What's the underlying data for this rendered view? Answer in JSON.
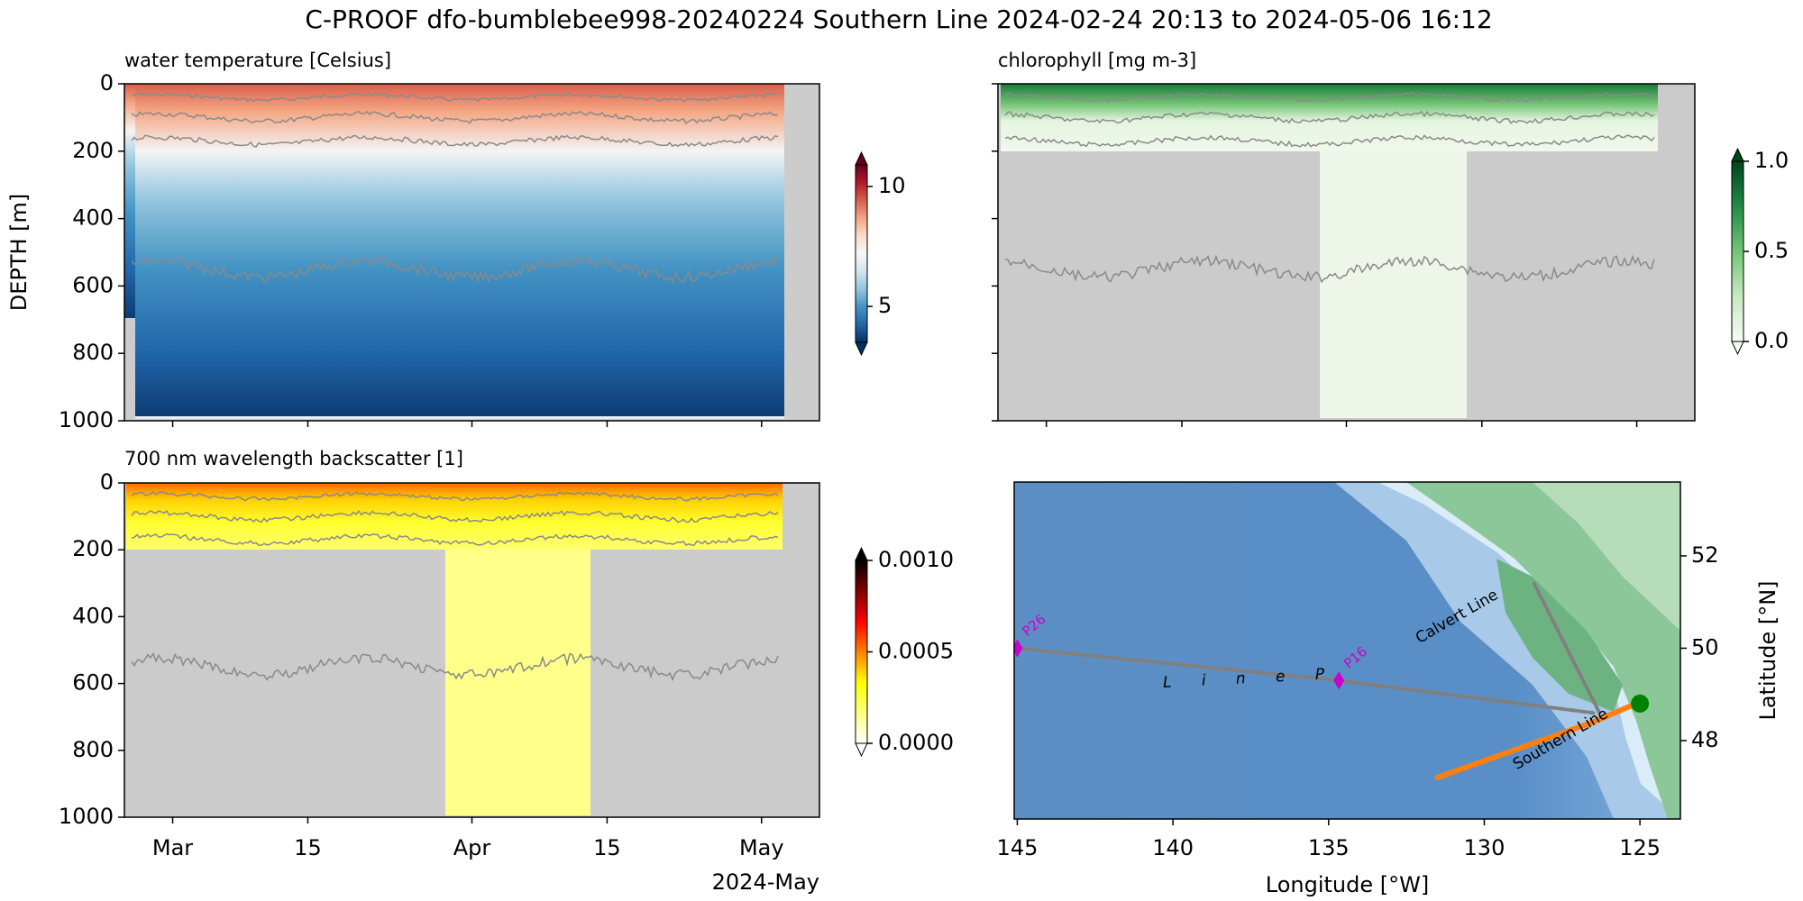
{
  "title": "C-PROOF dfo-bumblebee998-20240224   Southern Line   2024-02-24 20:13 to 2024-05-06 16:12",
  "chart_data": [
    {
      "type": "heatmap",
      "title": "water temperature [Celsius]",
      "ylabel": "DEPTH [m]",
      "xlim": [
        "2024-02-25",
        "2024-05-07"
      ],
      "xticks": [
        "2024-03-01",
        "2024-03-15",
        "2024-04-01",
        "2024-04-15",
        "2024-05-01"
      ],
      "show_xtick_labels": false,
      "show_ytick_labels": true,
      "ylim": [
        1000,
        0
      ],
      "yticks": [
        0,
        200,
        400,
        600,
        800,
        1000
      ],
      "colorbar": {
        "lim": [
          3.5,
          10.9
        ],
        "ticks": [
          5,
          10
        ],
        "colors": [
          "#053061",
          "#2166ac",
          "#4393c3",
          "#92c5de",
          "#d1e5f0",
          "#f7f7f7",
          "#fddbc7",
          "#f4a582",
          "#d6604d",
          "#b2182b",
          "#67001f"
        ]
      }
    },
    {
      "type": "heatmap",
      "title": "chlorophyll [mg m-3]",
      "xlim": [
        "2024-02-25",
        "2024-05-07"
      ],
      "xticks": [
        "2024-03-01",
        "2024-03-15",
        "2024-04-01",
        "2024-04-15",
        "2024-05-01"
      ],
      "show_xtick_labels": false,
      "show_ytick_labels": false,
      "ylim": [
        1000,
        0
      ],
      "yticks": [
        0,
        200,
        400,
        600,
        800,
        1000
      ],
      "colorbar": {
        "lim": [
          0,
          1
        ],
        "ticks": [
          {
            "value": 0,
            "label": "0.0"
          },
          {
            "value": 0.5,
            "label": "0.5"
          },
          {
            "value": 1,
            "label": "1.0"
          }
        ],
        "colors": [
          "#f7fcf5",
          "#c7e9c0",
          "#74c476",
          "#238b45",
          "#00441b"
        ]
      }
    },
    {
      "type": "heatmap",
      "title": "700 nm wavelength backscatter [1]",
      "xlim": [
        "2024-02-25",
        "2024-05-07"
      ],
      "xticks": [
        {
          "value": "2024-03-01",
          "label": "Mar"
        },
        {
          "value": "2024-03-15",
          "label": "15"
        },
        {
          "value": "2024-04-01",
          "label": "Apr"
        },
        {
          "value": "2024-04-15",
          "label": "15"
        },
        {
          "value": "2024-05-01",
          "label": "May"
        }
      ],
      "xoffset_label": "2024-May",
      "show_xtick_labels": true,
      "show_ytick_labels": true,
      "ylim": [
        1000,
        0
      ],
      "yticks": [
        0,
        200,
        400,
        600,
        800,
        1000
      ],
      "colorbar": {
        "lim": [
          0,
          0.001
        ],
        "ticks": [
          {
            "value": 0,
            "label": "0.0000"
          },
          {
            "value": 0.0005,
            "label": "0.0005"
          },
          {
            "value": 0.001,
            "label": "0.0010"
          }
        ],
        "colors": [
          "#ffffff",
          "#ffff80",
          "#ffff00",
          "#ff8000",
          "#ff0000",
          "#800000",
          "#000000"
        ]
      }
    },
    {
      "type": "map",
      "xlabel": "Longitude [°W]",
      "ylabel": "Latitude [°N]",
      "xlim": [
        145.1,
        123.7
      ],
      "xticks": [
        145,
        140,
        135,
        130,
        125
      ],
      "ylim": [
        46.3,
        53.6
      ],
      "yticks": [
        48,
        50,
        52
      ],
      "series": [
        {
          "color": "#808080",
          "x": [
            145,
            134.67,
            126.5
          ],
          "y": [
            50,
            49.3,
            48.6
          ]
        },
        {
          "color": "#808080",
          "x": [
            126.3,
            128.4
          ],
          "y": [
            48.6,
            51.4
          ]
        },
        {
          "color": "#ff7f0e",
          "x": [
            131.5,
            126.5,
            125.3
          ],
          "y": [
            47.2,
            48.4,
            48.75
          ]
        }
      ],
      "stations": {
        "labels": [
          "P26",
          "P16"
        ],
        "x": [
          145,
          134.67
        ],
        "y": [
          50,
          49.3
        ],
        "color": "#cc00cc"
      },
      "glider": {
        "x": 125.0,
        "y": 48.8,
        "color": "#008000"
      },
      "annotations": [
        "L i n e   P",
        "Calvert Line",
        "Southern Line"
      ]
    }
  ]
}
